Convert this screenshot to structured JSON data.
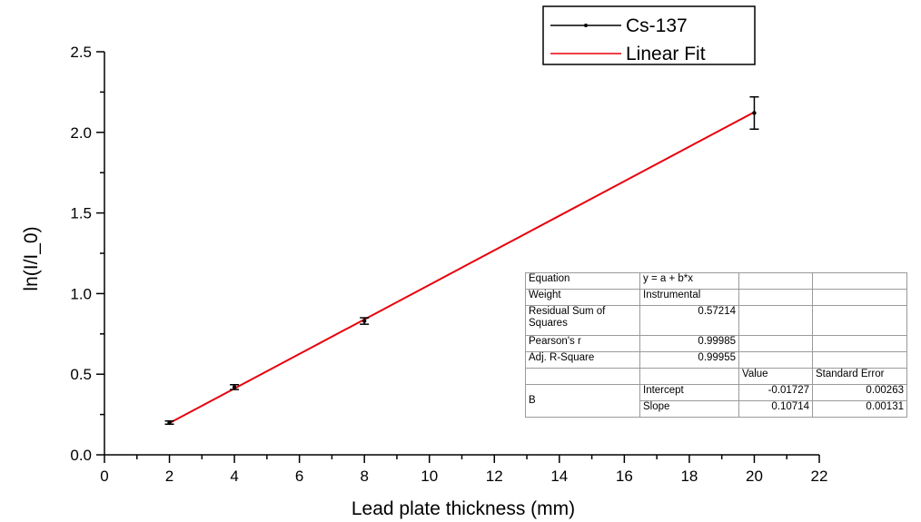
{
  "chart_data": {
    "type": "scatter",
    "title": "",
    "xlabel": "Lead plate thickness (mm)",
    "ylabel": "ln(I/I_0)",
    "xlim": [
      0,
      22
    ],
    "ylim": [
      0.0,
      2.5
    ],
    "x_ticks": [
      "0",
      "2",
      "4",
      "6",
      "8",
      "10",
      "12",
      "14",
      "16",
      "18",
      "20",
      "22"
    ],
    "y_ticks": [
      "0.0",
      "0.5",
      "1.0",
      "1.5",
      "2.0",
      "2.5"
    ],
    "grid": false,
    "legend_position": "top-right",
    "series": [
      {
        "name": "Cs-137",
        "color": "#000000",
        "x": [
          2,
          4,
          8,
          20
        ],
        "y": [
          0.2,
          0.42,
          0.83,
          2.12
        ],
        "error": [
          0.01,
          0.015,
          0.02,
          0.1
        ]
      },
      {
        "name": "Linear Fit",
        "color": "#e8000b",
        "intercept": -0.01727,
        "slope": 0.10714,
        "x_range": [
          2,
          20
        ]
      }
    ]
  },
  "fit_table": {
    "equation_label": "Equation",
    "equation_value": "y = a + b*x",
    "weight_label": "Weight",
    "weight_value": "Instrumental",
    "rss_label": "Residual Sum of Squares",
    "rss_value": "0.57214",
    "pearson_label": "Pearson's r",
    "pearson_value": "0.99985",
    "adjr_label": "Adj. R-Square",
    "adjr_value": "0.99955",
    "value_header": "Value",
    "stderr_header": "Standard Error",
    "param_group": "B",
    "intercept_label": "Intercept",
    "intercept_value": "-0.01727",
    "intercept_error": "0.00263",
    "slope_label": "Slope",
    "slope_value": "0.10714",
    "slope_error": "0.00131"
  }
}
